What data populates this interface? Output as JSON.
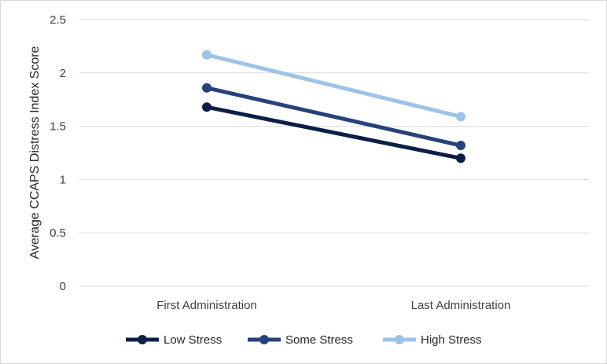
{
  "chart_data": {
    "type": "line",
    "title": "",
    "xlabel": "",
    "ylabel": "Average CCAPS Distress Index Score",
    "categories": [
      "First Administration",
      "Last Administration"
    ],
    "yticks": [
      "0",
      "0.5",
      "1",
      "1.5",
      "2",
      "2.5"
    ],
    "ylim": [
      0,
      2.5
    ],
    "grid": true,
    "legend_position": "bottom",
    "series": [
      {
        "name": "Low Stress",
        "values": [
          1.68,
          1.2
        ],
        "color": "#0b1f44"
      },
      {
        "name": "Some Stress",
        "values": [
          1.86,
          1.32
        ],
        "color": "#26427a"
      },
      {
        "name": "High Stress",
        "values": [
          2.17,
          1.59
        ],
        "color": "#9dc3e6"
      }
    ]
  }
}
